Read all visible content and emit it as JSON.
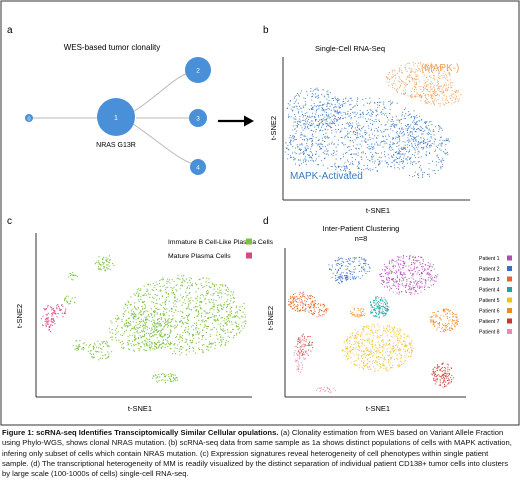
{
  "figure": {
    "panels": {
      "a": {
        "letter": "a",
        "title": "WES-based tumor clonality",
        "nodes": [
          "0",
          "1",
          "2",
          "3",
          "4"
        ],
        "mutation_label": "NRAS G13R"
      },
      "b": {
        "letter": "b",
        "title": "Single-Cell RNA-Seq",
        "xlabel": "t-SNE1",
        "ylabel": "t-SNE2",
        "cluster_labels": [
          "(MAPK-)",
          "MAPK-Activated"
        ]
      },
      "c": {
        "letter": "c",
        "xlabel": "t-SNE1",
        "ylabel": "t-SNE2",
        "legend": [
          "Immature B Cell-Like Plasma Cells",
          "Mature Plasma Cells"
        ]
      },
      "d": {
        "letter": "d",
        "title": "Inter-Patient Clustering",
        "subtitle": "n=8",
        "xlabel": "t-SNE1",
        "ylabel": "t-SNE2",
        "legend": [
          "Patient 1",
          "Patient 2",
          "Patient 3",
          "Patient 4",
          "Patient 5",
          "Patient 6",
          "Patient 7",
          "Patient 8"
        ]
      }
    },
    "colors": {
      "node_blue": "#4a90d9",
      "mapk_orange": "#f0a057",
      "mapk_blue": "#3a79bf",
      "immature_green": "#7cc242",
      "mature_pink": "#d44a7f",
      "patients": [
        "#b04ab6",
        "#3a6cc8",
        "#e0682a",
        "#1aa6a0",
        "#f2c01e",
        "#f08a1c",
        "#c8372f",
        "#e88aa8"
      ]
    },
    "caption": {
      "bold": "Figure 1: scRNA-seq Identifies Transciptomically Similar Cellular opulations.",
      "text": " (a) Clonality estimation from WES based on Variant Allele Fraction using Phylo-WGS, shows clonal NRAS mutation. (b) scRNA-seq data from same sample as 1a shows distinct populations of cells with MAPK activation, infering only subset of cells which contain NRAS mutation. (c) Expression signatures reveal heterogeneity of cell phenotypes within single patient sample. (d) The transcriptional heterogeneity of MM is readily visualized by the distinct separation of individual patient CD138+ tumor cells into clusters by large scale (100-1000s of cells) single-cell RNA-seq."
    }
  }
}
